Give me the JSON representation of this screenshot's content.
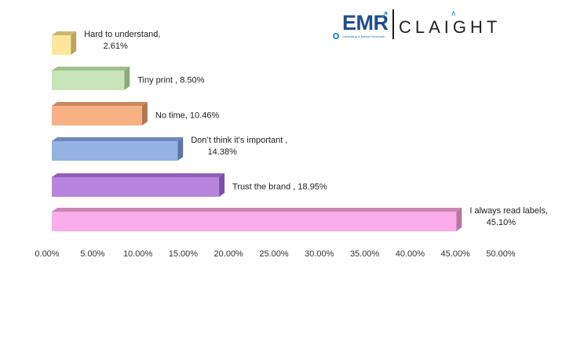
{
  "logo": {
    "emr": "EMR",
    "emr_tagline": "Consulting & Market Research",
    "claight": "CLAIGHT"
  },
  "chart_data": {
    "type": "bar",
    "orientation": "horizontal",
    "style": "3d",
    "categories": [
      "Hard to understand,",
      "Tiny print ,",
      "No time,",
      "Don't think it's important ,",
      "Trust the brand ,",
      "I always read labels,"
    ],
    "values": [
      2.61,
      8.5,
      10.46,
      14.38,
      18.95,
      45.1
    ],
    "data_labels": [
      [
        "Hard to understand,",
        "2.61%"
      ],
      [
        "Tiny print , 8.50%"
      ],
      [
        "No time, 10.46%"
      ],
      [
        "Don’t think it's important ,",
        "14.38%"
      ],
      [
        "Trust the brand , 18.95%"
      ],
      [
        "I always read labels,",
        "45.10%"
      ]
    ],
    "xticks": [
      "0.00%",
      "5.00%",
      "10.00%",
      "15.00%",
      "20.00%",
      "25.00%",
      "30.00%",
      "35.00%",
      "40.00%",
      "45.00%",
      "50.00%"
    ],
    "xlim": [
      0,
      50
    ],
    "colors": [
      "#fde69a",
      "#c9e4b8",
      "#f7b184",
      "#94b3e3",
      "#b884dc",
      "#fbacea"
    ],
    "side_colors": [
      "#b8a45e",
      "#8aab78",
      "#b67650",
      "#5b76a8",
      "#7e4fa3",
      "#b5769f"
    ],
    "top_colors": [
      "#c9b774",
      "#9fbf8d",
      "#c98a62",
      "#6d8ac0",
      "#9060b8",
      "#c985b3"
    ],
    "grid": false,
    "legend": "none"
  }
}
